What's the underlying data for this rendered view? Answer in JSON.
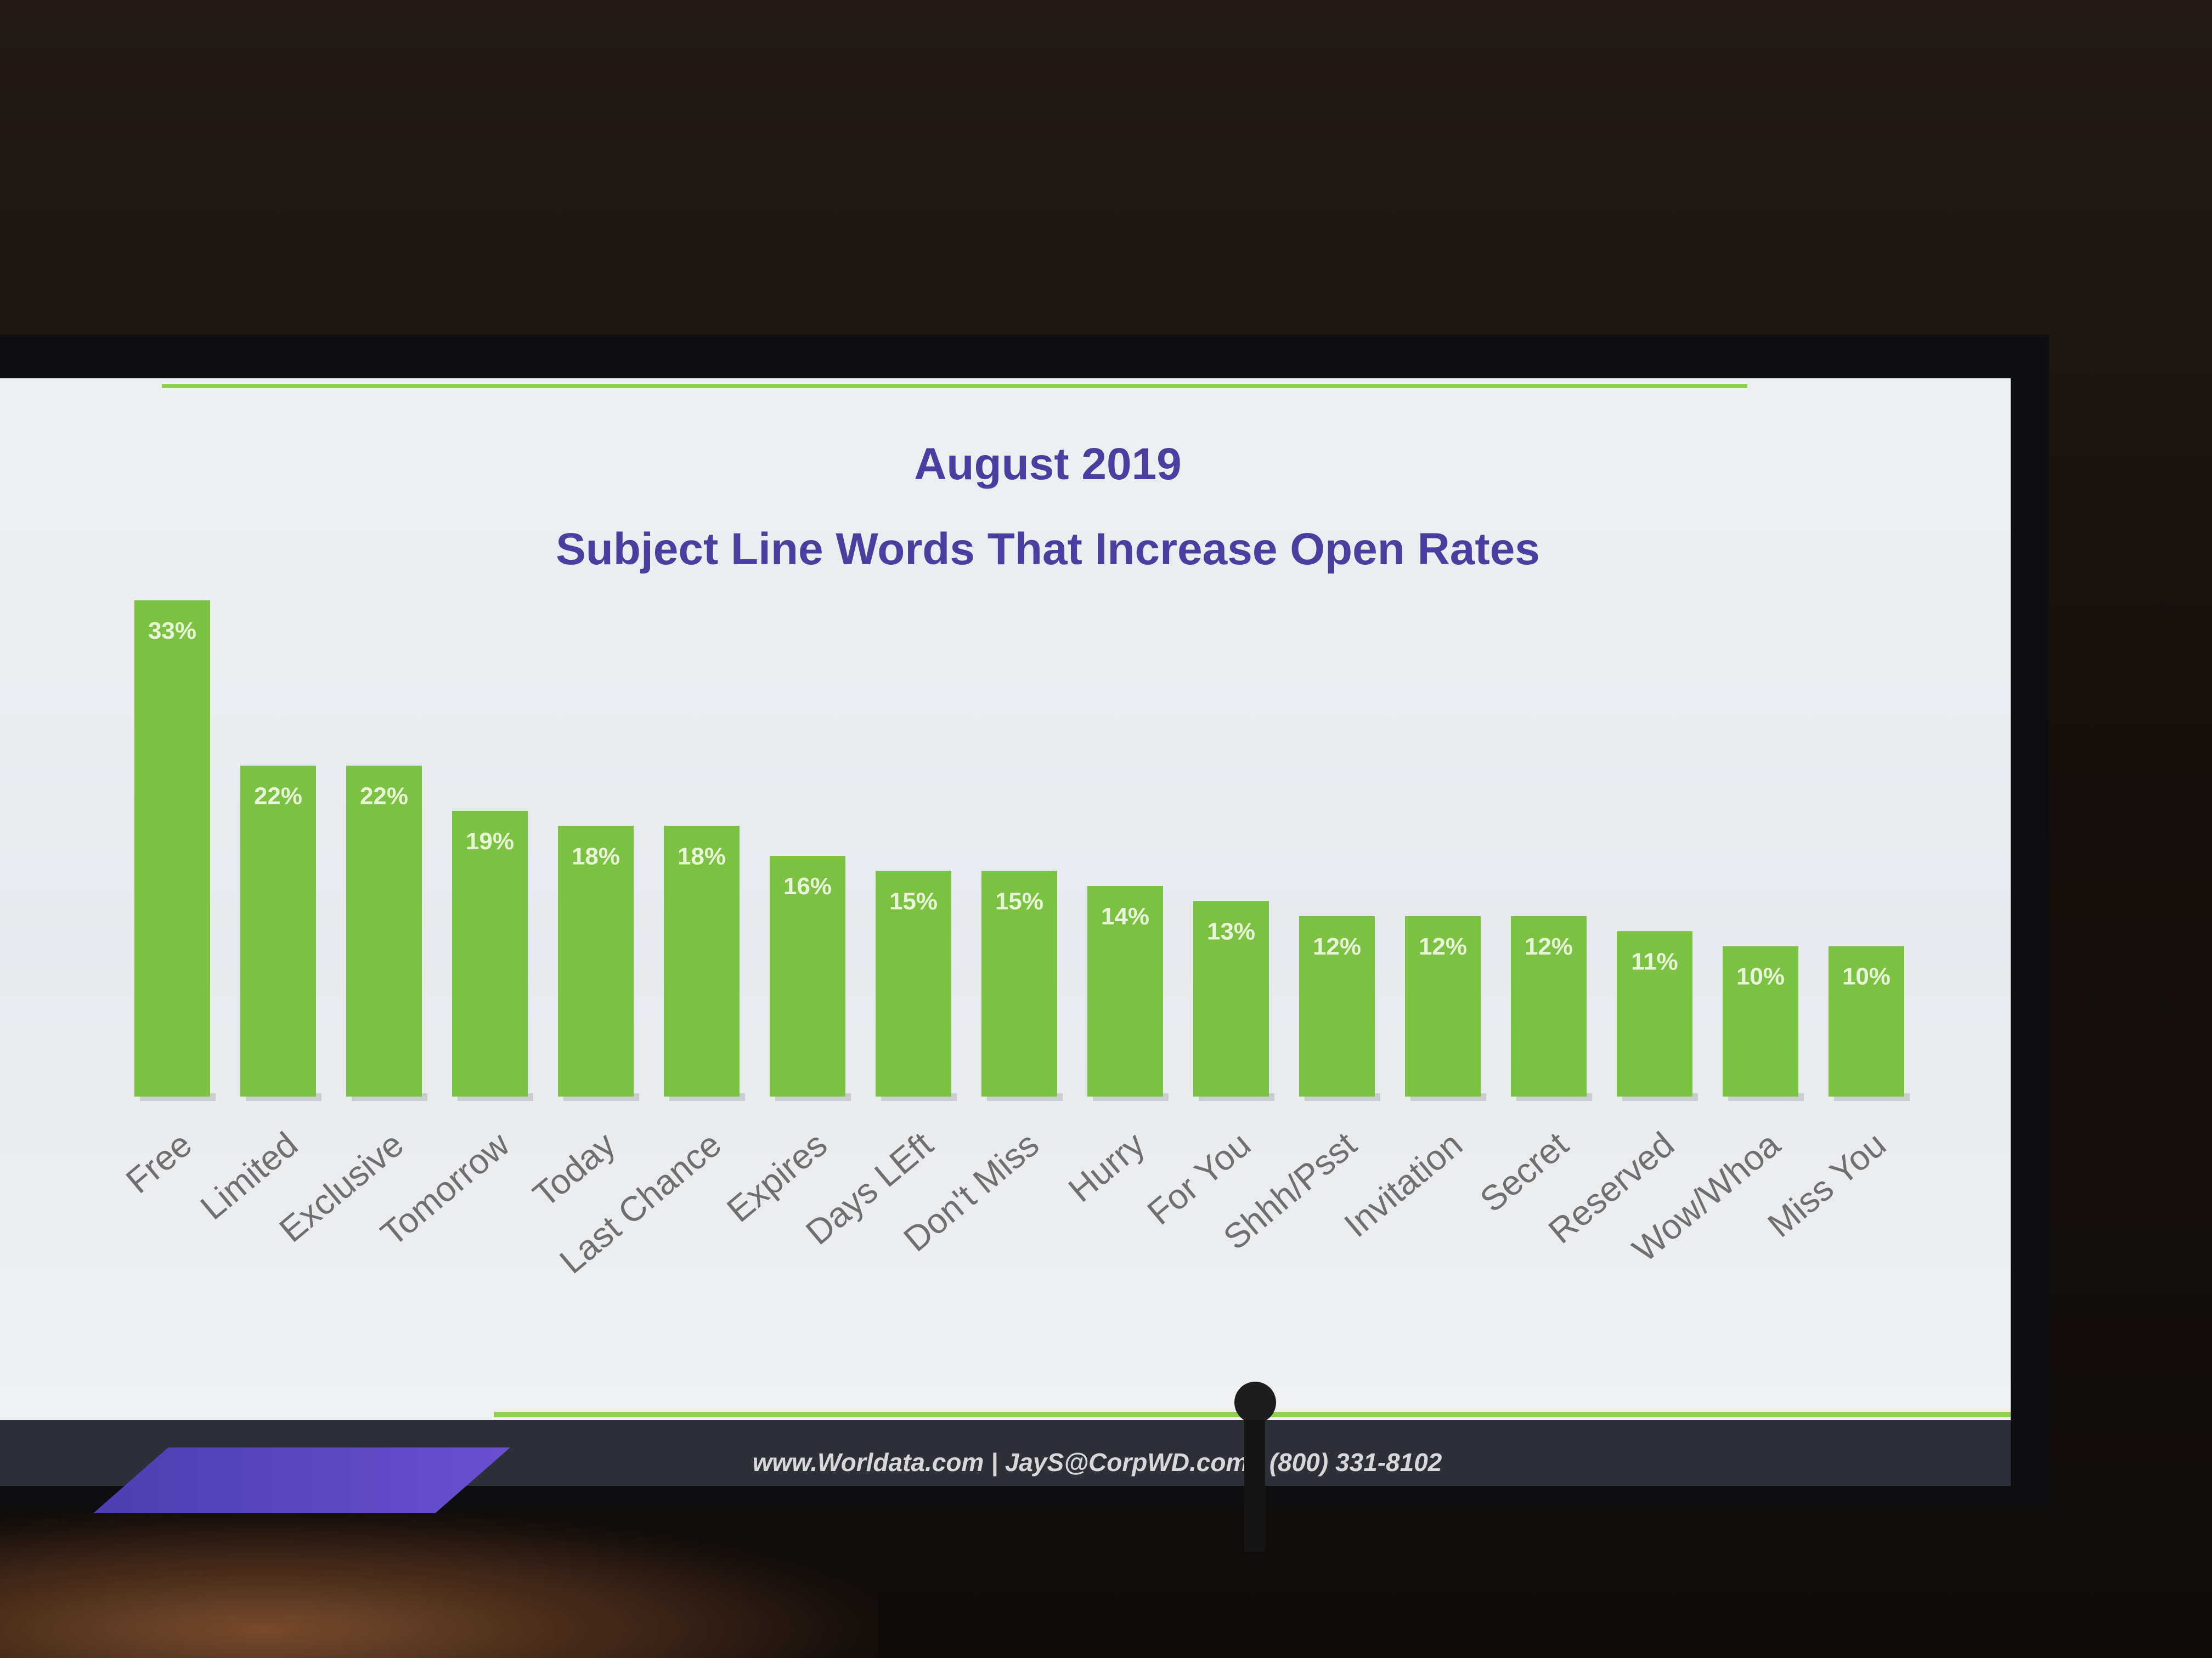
{
  "chart_data": {
    "type": "bar",
    "title": "August 2019",
    "subtitle": "Subject Line Words That Increase Open Rates",
    "categories": [
      "Free",
      "Limited",
      "Exclusive",
      "Tomorrow",
      "Today",
      "Last Chance",
      "Expires",
      "Days LEft",
      "Don't Miss",
      "Hurry",
      "For You",
      "Shhh/Psst",
      "Invitation",
      "Secret",
      "Reserved",
      "Wow/Whoa",
      "Miss You"
    ],
    "values": [
      33,
      22,
      22,
      19,
      18,
      18,
      16,
      15,
      15,
      14,
      13,
      12,
      12,
      12,
      11,
      10,
      10
    ],
    "data_labels": [
      "33%",
      "22%",
      "22%",
      "19%",
      "18%",
      "18%",
      "16%",
      "15%",
      "15%",
      "14%",
      "13%",
      "12%",
      "12%",
      "12%",
      "11%",
      "10%",
      "10%"
    ],
    "xlabel": "",
    "ylabel": "",
    "ylim": [
      0,
      35
    ],
    "grid": false,
    "legend": "none",
    "bar_color": "#7cc242"
  },
  "slide": {
    "footer": "www.Worldata.com | JayS@CorpWD.com | (800) 331-8102",
    "title_color": "#4a3ea0",
    "accent_color": "#8fd14f"
  }
}
